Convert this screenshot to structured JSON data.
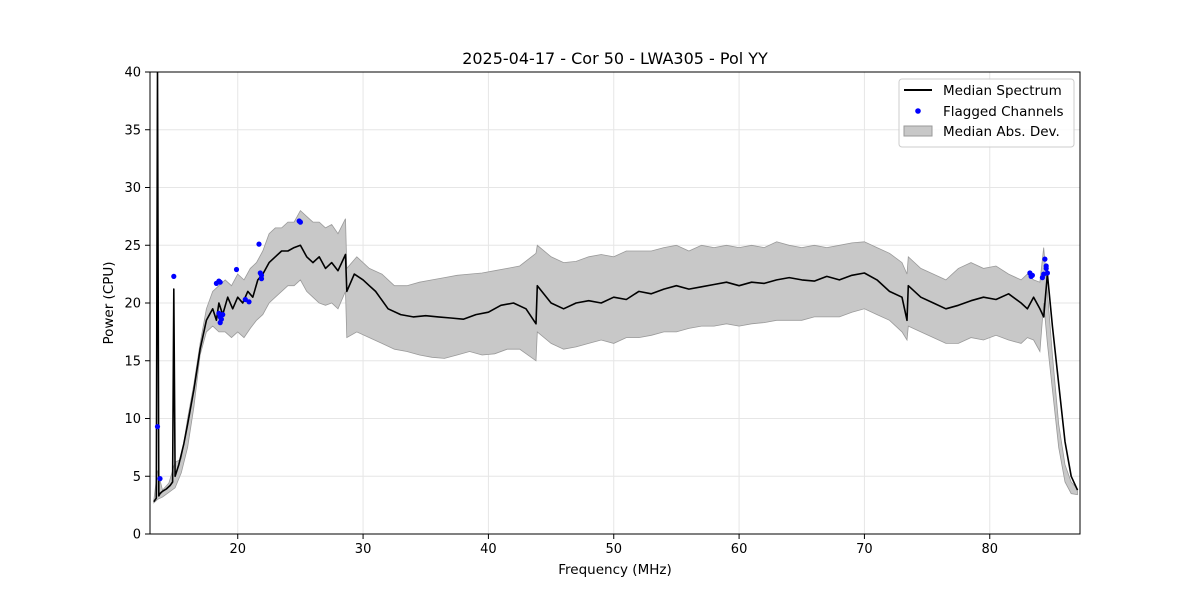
{
  "chart_data": {
    "type": "line",
    "title": "2025-04-17 - Cor 50 - LWA305 - Pol YY",
    "xlabel": "Frequency (MHz)",
    "ylabel": "Power (CPU)",
    "xlim": [
      13.0,
      87.2
    ],
    "ylim": [
      0,
      40
    ],
    "xticks": [
      20,
      30,
      40,
      50,
      60,
      70,
      80
    ],
    "yticks": [
      0,
      5,
      10,
      15,
      20,
      25,
      30,
      35,
      40
    ],
    "grid": true,
    "legend_position": "top-right",
    "legend": [
      "Median Spectrum",
      "Flagged Channels",
      "Median Abs. Dev."
    ],
    "colors": {
      "median": "#000000",
      "flagged": "#0000ff",
      "band_fill": "#c8c8c8",
      "band_edge": "#9a9a9a",
      "grid": "#e6e6e6"
    },
    "series": [
      {
        "name": "Median Spectrum",
        "x": [
          13.3,
          13.5,
          13.6,
          13.7,
          13.8,
          13.9,
          14.0,
          14.3,
          14.6,
          14.8,
          14.9,
          15.0,
          15.3,
          15.7,
          16.0,
          16.5,
          17.0,
          17.5,
          18.0,
          18.3,
          18.5,
          18.8,
          19.2,
          19.6,
          20.0,
          20.4,
          20.8,
          21.2,
          21.6,
          22.0,
          22.5,
          23.0,
          23.5,
          24.0,
          24.5,
          25.0,
          25.5,
          26.0,
          26.5,
          27.0,
          27.5,
          28.0,
          28.6,
          28.7,
          29.3,
          30.0,
          30.5,
          31.0,
          32.0,
          33.0,
          34.0,
          35.0,
          36.0,
          37.0,
          38.0,
          39.0,
          40.0,
          41.0,
          42.0,
          43.0,
          43.8,
          43.9,
          45.0,
          46.0,
          47.0,
          48.0,
          49.0,
          50.0,
          51.0,
          52.0,
          53.0,
          54.0,
          55.0,
          56.0,
          57.0,
          58.0,
          59.0,
          60.0,
          61.0,
          62.0,
          63.0,
          64.0,
          65.0,
          66.0,
          67.0,
          68.0,
          69.0,
          70.0,
          71.0,
          72.0,
          73.0,
          73.4,
          73.5,
          74.5,
          75.5,
          76.5,
          77.5,
          78.5,
          79.5,
          80.5,
          81.5,
          82.5,
          83.0,
          83.5,
          84.0,
          84.3,
          84.6,
          85.0,
          85.5,
          86.0,
          86.5,
          87.0
        ],
        "y": [
          2.8,
          3.1,
          40.0,
          3.3,
          3.5,
          3.6,
          3.7,
          3.9,
          4.2,
          4.5,
          21.2,
          5.0,
          6.0,
          7.8,
          9.5,
          12.5,
          16.0,
          18.5,
          19.5,
          18.5,
          20.0,
          19.0,
          20.5,
          19.5,
          20.5,
          20.0,
          21.0,
          20.5,
          22.0,
          22.5,
          23.5,
          24.0,
          24.5,
          24.5,
          24.8,
          25.0,
          24.0,
          23.5,
          24.0,
          23.0,
          23.5,
          22.8,
          24.2,
          21.0,
          22.5,
          22.0,
          21.5,
          21.0,
          19.5,
          19.0,
          18.8,
          18.9,
          18.8,
          18.7,
          18.6,
          19.0,
          19.2,
          19.8,
          20.0,
          19.5,
          18.2,
          21.5,
          20.0,
          19.5,
          20.0,
          20.2,
          20.0,
          20.5,
          20.3,
          21.0,
          20.8,
          21.2,
          21.5,
          21.2,
          21.4,
          21.6,
          21.8,
          21.5,
          21.8,
          21.7,
          22.0,
          22.2,
          22.0,
          21.9,
          22.3,
          22.0,
          22.4,
          22.6,
          22.0,
          21.0,
          20.5,
          18.5,
          21.5,
          20.5,
          20.0,
          19.5,
          19.8,
          20.2,
          20.5,
          20.3,
          20.8,
          20.0,
          19.5,
          20.5,
          19.5,
          18.8,
          22.5,
          18.0,
          13.0,
          8.0,
          5.0,
          3.8
        ]
      },
      {
        "name": "Median Abs. Dev.",
        "x": [
          13.3,
          13.6,
          14.0,
          14.5,
          15.0,
          15.5,
          16.0,
          16.5,
          17.0,
          17.5,
          18.0,
          18.5,
          19.0,
          19.5,
          20.0,
          20.5,
          21.0,
          21.5,
          22.0,
          22.5,
          23.0,
          23.5,
          24.0,
          24.5,
          25.0,
          25.5,
          26.0,
          26.5,
          27.0,
          27.5,
          28.0,
          28.6,
          28.7,
          29.5,
          30.5,
          31.5,
          32.5,
          33.5,
          34.5,
          35.5,
          36.5,
          37.5,
          38.5,
          39.5,
          40.5,
          41.5,
          42.5,
          43.8,
          43.9,
          45.0,
          46.0,
          47.0,
          48.0,
          49.0,
          50.0,
          51.0,
          52.0,
          53.0,
          54.0,
          55.0,
          56.0,
          57.0,
          58.0,
          59.0,
          60.0,
          61.0,
          62.0,
          63.0,
          64.0,
          65.0,
          66.0,
          67.0,
          68.0,
          69.0,
          70.0,
          71.0,
          72.0,
          73.0,
          73.4,
          73.5,
          74.5,
          75.5,
          76.5,
          77.5,
          78.5,
          79.5,
          80.5,
          81.5,
          82.5,
          83.0,
          83.5,
          84.0,
          84.3,
          84.6,
          85.0,
          85.5,
          86.0,
          86.5,
          87.0
        ],
        "upper": [
          2.9,
          5.5,
          3.8,
          4.4,
          6.2,
          6.5,
          10.0,
          13.0,
          16.5,
          19.5,
          21.0,
          21.5,
          22.0,
          21.5,
          22.5,
          22.0,
          23.0,
          23.5,
          24.5,
          26.0,
          26.5,
          26.5,
          27.0,
          27.0,
          28.0,
          27.5,
          27.0,
          27.0,
          26.5,
          26.8,
          26.0,
          27.3,
          23.0,
          24.0,
          23.0,
          22.5,
          21.5,
          21.5,
          21.8,
          22.0,
          22.2,
          22.4,
          22.5,
          22.6,
          22.8,
          23.0,
          23.2,
          24.3,
          25.0,
          24.0,
          23.5,
          23.6,
          24.0,
          24.2,
          24.0,
          24.5,
          24.5,
          24.5,
          24.8,
          25.0,
          24.5,
          25.0,
          24.8,
          25.0,
          24.8,
          25.0,
          24.8,
          25.3,
          25.0,
          24.8,
          25.0,
          24.8,
          25.0,
          25.2,
          25.3,
          24.8,
          24.3,
          23.5,
          22.5,
          24.0,
          23.0,
          22.5,
          22.0,
          23.0,
          23.5,
          23.0,
          23.2,
          22.5,
          22.0,
          22.5,
          22.0,
          21.8,
          24.8,
          21.0,
          15.5,
          9.5,
          6.0,
          4.5,
          3.9
        ],
        "lower": [
          2.7,
          3.0,
          3.2,
          3.6,
          4.0,
          5.3,
          7.5,
          11.0,
          15.5,
          17.5,
          18.0,
          17.5,
          17.5,
          17.0,
          17.5,
          17.0,
          17.8,
          18.5,
          19.0,
          20.0,
          20.5,
          21.0,
          21.5,
          21.5,
          22.0,
          21.0,
          20.5,
          20.0,
          19.8,
          20.0,
          19.5,
          21.0,
          17.0,
          17.5,
          17.0,
          16.5,
          16.0,
          15.8,
          15.5,
          15.3,
          15.2,
          15.5,
          15.8,
          15.5,
          15.6,
          16.0,
          16.0,
          15.0,
          17.5,
          16.5,
          16.0,
          16.2,
          16.5,
          16.8,
          16.5,
          17.0,
          17.0,
          17.2,
          17.5,
          17.5,
          17.8,
          18.0,
          18.0,
          18.2,
          18.0,
          18.2,
          18.3,
          18.5,
          18.5,
          18.5,
          18.8,
          18.8,
          18.8,
          19.2,
          19.5,
          19.0,
          18.5,
          17.5,
          16.8,
          18.0,
          17.5,
          17.0,
          16.5,
          16.5,
          17.0,
          16.8,
          17.2,
          16.8,
          16.5,
          17.0,
          16.8,
          15.8,
          20.0,
          16.5,
          12.5,
          7.5,
          4.5,
          3.5,
          3.4
        ]
      },
      {
        "name": "Flagged Channels",
        "points": [
          [
            13.6,
            9.3
          ],
          [
            13.8,
            4.8
          ],
          [
            14.9,
            22.3
          ],
          [
            18.3,
            21.7
          ],
          [
            18.5,
            21.9
          ],
          [
            18.6,
            21.8
          ],
          [
            18.5,
            19.1
          ],
          [
            18.6,
            18.8
          ],
          [
            18.7,
            18.6
          ],
          [
            18.6,
            18.3
          ],
          [
            18.8,
            19.0
          ],
          [
            19.9,
            22.9
          ],
          [
            20.6,
            20.3
          ],
          [
            20.9,
            20.1
          ],
          [
            21.7,
            25.1
          ],
          [
            21.8,
            22.6
          ],
          [
            21.9,
            22.4
          ],
          [
            21.9,
            22.1
          ],
          [
            24.9,
            27.1
          ],
          [
            25.0,
            27.0
          ],
          [
            83.2,
            22.6
          ],
          [
            83.3,
            22.3
          ],
          [
            83.4,
            22.4
          ],
          [
            84.2,
            22.2
          ],
          [
            84.3,
            22.5
          ],
          [
            84.4,
            23.8
          ],
          [
            84.5,
            23.2
          ],
          [
            84.5,
            23.0
          ],
          [
            84.6,
            22.6
          ]
        ]
      }
    ]
  }
}
